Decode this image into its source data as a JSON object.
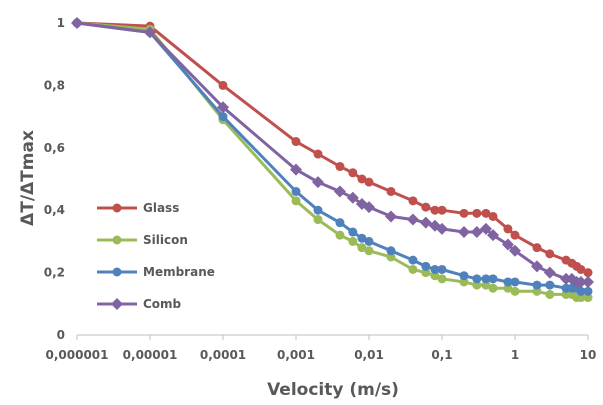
{
  "chart_data": {
    "type": "line",
    "title": "",
    "xlabel": "Velocity (m/s)",
    "ylabel": "ΔT/ΔTmax",
    "x_scale": "log",
    "xlim": [
      1e-06,
      10
    ],
    "ylim": [
      0,
      1
    ],
    "x_tick_labels": [
      "0,000001",
      "0,00001",
      "0,0001",
      "0,001",
      "0,01",
      "0,1",
      "1",
      "10"
    ],
    "y_tick_labels": [
      "0",
      "0,2",
      "0,4",
      "0,6",
      "0,8",
      "1"
    ],
    "grid": false,
    "legend_position": "left",
    "series": [
      {
        "name": "Glass",
        "color": "#c0504d",
        "marker": "circle",
        "points": [
          [
            1e-06,
            1.0
          ],
          [
            1e-05,
            0.99
          ],
          [
            0.0001,
            0.8
          ],
          [
            0.001,
            0.62
          ],
          [
            0.002,
            0.58
          ],
          [
            0.004,
            0.54
          ],
          [
            0.006,
            0.52
          ],
          [
            0.008,
            0.5
          ],
          [
            0.01,
            0.49
          ],
          [
            0.02,
            0.46
          ],
          [
            0.04,
            0.43
          ],
          [
            0.06,
            0.41
          ],
          [
            0.08,
            0.4
          ],
          [
            0.1,
            0.4
          ],
          [
            0.2,
            0.39
          ],
          [
            0.3,
            0.39
          ],
          [
            0.4,
            0.39
          ],
          [
            0.5,
            0.38
          ],
          [
            0.8,
            0.34
          ],
          [
            1,
            0.32
          ],
          [
            2,
            0.28
          ],
          [
            3,
            0.26
          ],
          [
            5,
            0.24
          ],
          [
            6,
            0.23
          ],
          [
            7,
            0.22
          ],
          [
            8,
            0.21
          ],
          [
            10,
            0.2
          ]
        ]
      },
      {
        "name": "Silicon",
        "color": "#9bbb59",
        "marker": "circle",
        "points": [
          [
            1e-06,
            1.0
          ],
          [
            1e-05,
            0.98
          ],
          [
            0.0001,
            0.69
          ],
          [
            0.001,
            0.43
          ],
          [
            0.002,
            0.37
          ],
          [
            0.004,
            0.32
          ],
          [
            0.006,
            0.3
          ],
          [
            0.008,
            0.28
          ],
          [
            0.01,
            0.27
          ],
          [
            0.02,
            0.25
          ],
          [
            0.04,
            0.21
          ],
          [
            0.06,
            0.2
          ],
          [
            0.08,
            0.19
          ],
          [
            0.1,
            0.18
          ],
          [
            0.2,
            0.17
          ],
          [
            0.3,
            0.16
          ],
          [
            0.4,
            0.16
          ],
          [
            0.5,
            0.15
          ],
          [
            0.8,
            0.15
          ],
          [
            1,
            0.14
          ],
          [
            2,
            0.14
          ],
          [
            3,
            0.13
          ],
          [
            5,
            0.13
          ],
          [
            6,
            0.13
          ],
          [
            7,
            0.12
          ],
          [
            8,
            0.12
          ],
          [
            10,
            0.12
          ]
        ]
      },
      {
        "name": "Membrane",
        "color": "#4f81bd",
        "marker": "circle",
        "points": [
          [
            1e-06,
            1.0
          ],
          [
            1e-05,
            0.97
          ],
          [
            0.0001,
            0.7
          ],
          [
            0.001,
            0.46
          ],
          [
            0.002,
            0.4
          ],
          [
            0.004,
            0.36
          ],
          [
            0.006,
            0.33
          ],
          [
            0.008,
            0.31
          ],
          [
            0.01,
            0.3
          ],
          [
            0.02,
            0.27
          ],
          [
            0.04,
            0.24
          ],
          [
            0.06,
            0.22
          ],
          [
            0.08,
            0.21
          ],
          [
            0.1,
            0.21
          ],
          [
            0.2,
            0.19
          ],
          [
            0.3,
            0.18
          ],
          [
            0.4,
            0.18
          ],
          [
            0.5,
            0.18
          ],
          [
            0.8,
            0.17
          ],
          [
            1,
            0.17
          ],
          [
            2,
            0.16
          ],
          [
            3,
            0.16
          ],
          [
            5,
            0.15
          ],
          [
            6,
            0.15
          ],
          [
            7,
            0.15
          ],
          [
            8,
            0.14
          ],
          [
            10,
            0.14
          ]
        ]
      },
      {
        "name": "Comb",
        "color": "#8064a2",
        "marker": "diamond",
        "points": [
          [
            1e-06,
            1.0
          ],
          [
            1e-05,
            0.97
          ],
          [
            0.0001,
            0.73
          ],
          [
            0.001,
            0.53
          ],
          [
            0.002,
            0.49
          ],
          [
            0.004,
            0.46
          ],
          [
            0.006,
            0.44
          ],
          [
            0.008,
            0.42
          ],
          [
            0.01,
            0.41
          ],
          [
            0.02,
            0.38
          ],
          [
            0.04,
            0.37
          ],
          [
            0.06,
            0.36
          ],
          [
            0.08,
            0.35
          ],
          [
            0.1,
            0.34
          ],
          [
            0.2,
            0.33
          ],
          [
            0.3,
            0.33
          ],
          [
            0.4,
            0.34
          ],
          [
            0.5,
            0.32
          ],
          [
            0.8,
            0.29
          ],
          [
            1,
            0.27
          ],
          [
            2,
            0.22
          ],
          [
            3,
            0.2
          ],
          [
            5,
            0.18
          ],
          [
            6,
            0.18
          ],
          [
            7,
            0.17
          ],
          [
            8,
            0.17
          ],
          [
            10,
            0.17
          ]
        ]
      }
    ]
  }
}
